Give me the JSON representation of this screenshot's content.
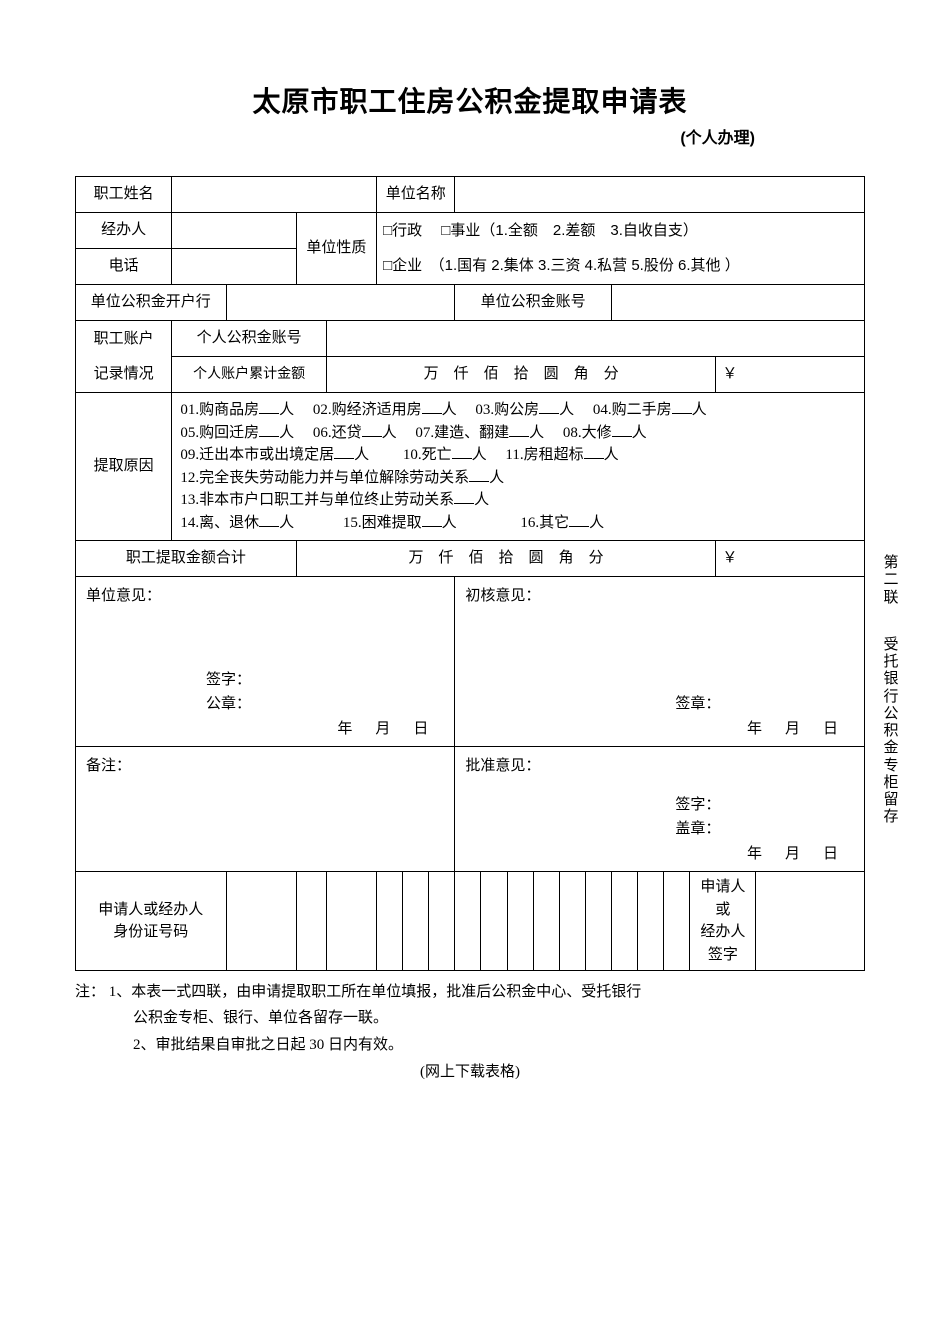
{
  "title": "太原市职工住房公积金提取申请表",
  "subtitle": "(个人办理)",
  "labels": {
    "employee_name": "职工姓名",
    "unit_name": "单位名称",
    "handler": "经办人",
    "phone": "电话",
    "unit_nature": "单位性质",
    "nature_line1": "□行政　 □事业（1.全额　2.差额　3.自收自支）",
    "nature_line2": "□企业　（1.国有 2.集体 3.三资 4.私营 5.股份 6.其他 ）",
    "unit_bank": "单位公积金开户行",
    "unit_account": "单位公积金账号",
    "emp_account_hdr1": "职工账户",
    "emp_account_hdr2": "记录情况",
    "personal_account_no": "个人公积金账号",
    "personal_account_amt": "个人账户累计金额",
    "amount_units": "万　仟　佰　拾　圆　角　分",
    "yen": "￥",
    "reason_label": "提取原因",
    "total_label": "职工提取金额合计",
    "unit_opinion": "单位意见：",
    "first_review": "初核意见：",
    "remark": "备注：",
    "approve": "批准意见：",
    "sign": "签字：",
    "seal": "公章：",
    "sign_seal": "签章：",
    "stamp": "盖章：",
    "date": "年　月　日",
    "id_label1": "申请人或经办人",
    "id_label2": "身份证号码",
    "sig_label1": "申请人或",
    "sig_label2": "经办人签字"
  },
  "reasons": [
    "01.购商品房__人　 02.购经济适用房__人　 03.购公房__人　 04.购二手房__人",
    "05.购回迁房__人　 06.还贷__人　 07.建造、翻建__人　 08.大修__人",
    "09.迁出本市或出境定居__人　　 10.死亡__人　 11.房租超标__人",
    "12.完全丧失劳动能力并与单位解除劳动关系__人",
    "13.非本市户口职工并与单位终止劳动关系__人",
    "14.离、退休__人　　　 15.困难提取__人　　　　 16.其它__人"
  ],
  "notes": {
    "n1": "注： 1、本表一式四联，由申请提取职工所在单位填报，批准后公积金中心、受托银行",
    "n1b": "公积金专柜、银行、单位各留存一联。",
    "n2": "2、审批结果自审批之日起 30 日内有效。",
    "dl": "(网上下载表格)"
  },
  "sidenote": {
    "a": "第二联",
    "b": "受托银行公积金专柜留存"
  }
}
